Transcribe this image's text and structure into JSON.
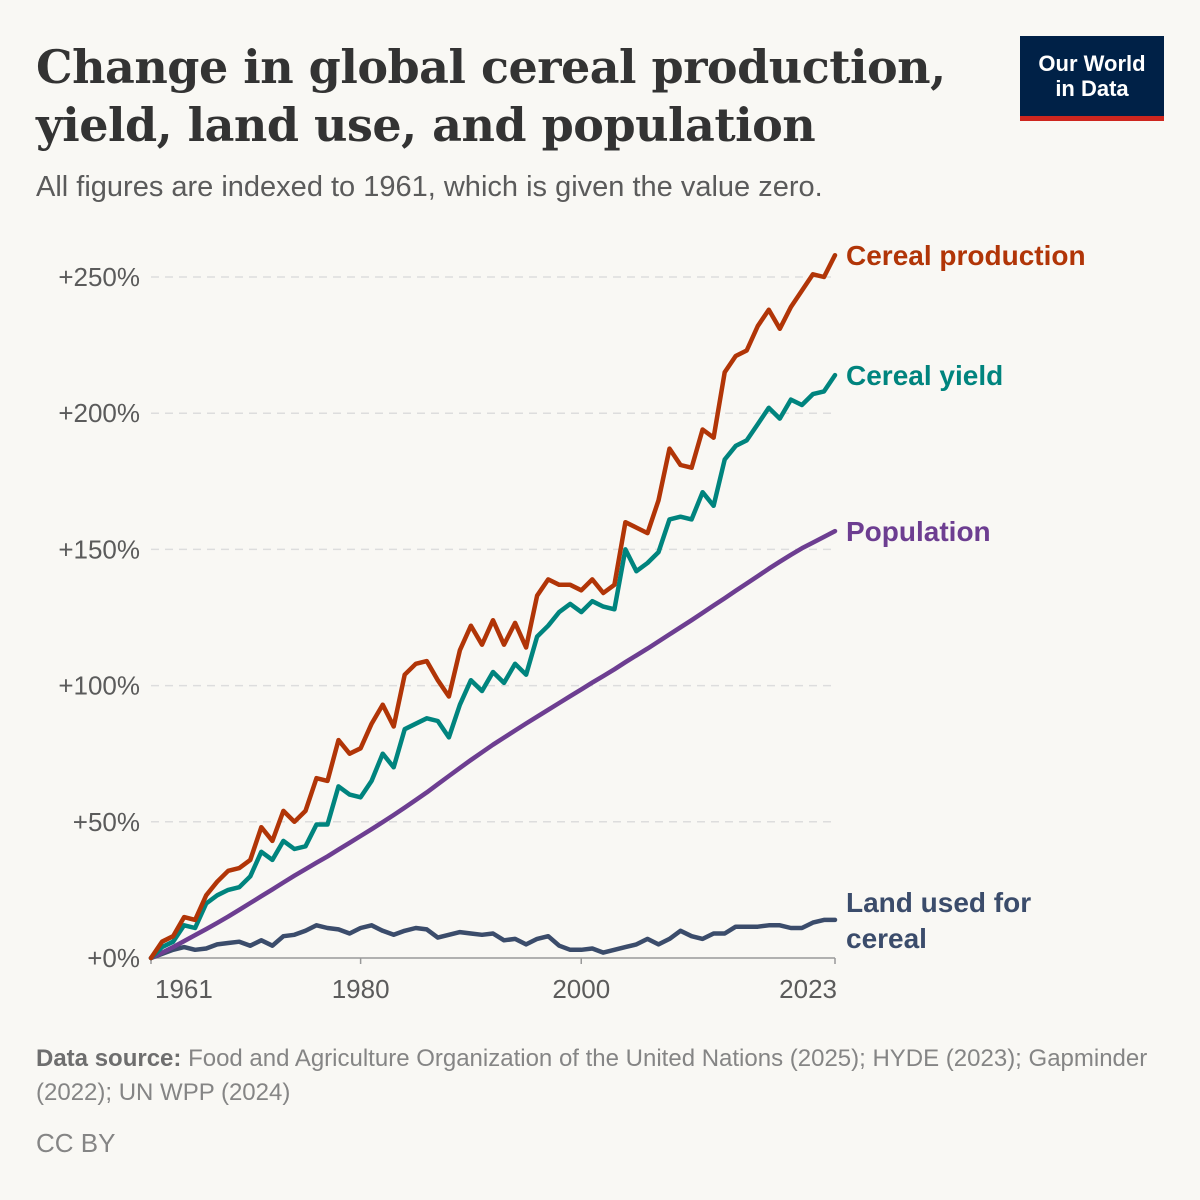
{
  "header": {
    "title": "Change in global cereal production, yield, land use, and population",
    "subtitle": "All figures are indexed to 1961, which is given the value zero.",
    "logo_line1": "Our World",
    "logo_line2": "in Data"
  },
  "footer": {
    "source_label": "Data source:",
    "source_text": "Food and Agriculture Organization of the United Nations (2025); HYDE (2023); Gapminder (2022); UN WPP (2024)",
    "license": "CC BY"
  },
  "colors": {
    "production": "#b13507",
    "yield": "#00847e",
    "population": "#6d3e91",
    "land": "#3b4c6b",
    "grid": "#dddddd",
    "axis": "#999999"
  },
  "chart_data": {
    "type": "line",
    "title": "Change in global cereal production, yield, land use, and population",
    "xlabel": "",
    "ylabel": "",
    "xlim": [
      1961,
      2023
    ],
    "ylim": [
      0,
      250
    ],
    "x_ticks": [
      1961,
      1980,
      2000,
      2023
    ],
    "y_ticks": [
      0,
      50,
      100,
      150,
      200,
      250
    ],
    "y_tick_labels": [
      "+0%",
      "+50%",
      "+100%",
      "+150%",
      "+200%",
      "+250%"
    ],
    "grid": "horizontal dashed",
    "legend": "inline labels at line ends (right)",
    "x": [
      1961,
      1962,
      1963,
      1964,
      1965,
      1966,
      1967,
      1968,
      1969,
      1970,
      1971,
      1972,
      1973,
      1974,
      1975,
      1976,
      1977,
      1978,
      1979,
      1980,
      1981,
      1982,
      1983,
      1984,
      1985,
      1986,
      1987,
      1988,
      1989,
      1990,
      1991,
      1992,
      1993,
      1994,
      1995,
      1996,
      1997,
      1998,
      1999,
      2000,
      2001,
      2002,
      2003,
      2004,
      2005,
      2006,
      2007,
      2008,
      2009,
      2010,
      2011,
      2012,
      2013,
      2014,
      2015,
      2016,
      2017,
      2018,
      2019,
      2020,
      2021,
      2022,
      2023
    ],
    "series": [
      {
        "key": "production",
        "name": "Cereal production",
        "label_lines": [
          "Cereal production"
        ],
        "values": [
          0,
          6,
          8,
          15,
          14,
          23,
          28,
          32,
          33,
          36,
          48,
          43,
          54,
          50,
          54,
          66,
          65,
          80,
          75,
          77,
          86,
          93,
          85,
          104,
          108,
          109,
          102,
          96,
          113,
          122,
          115,
          124,
          115,
          123,
          114,
          133,
          139,
          137,
          137,
          135,
          139,
          134,
          137,
          160,
          158,
          156,
          168,
          187,
          181,
          180,
          194,
          191,
          215,
          221,
          223,
          232,
          238,
          231,
          239,
          245,
          251,
          250,
          258
        ]
      },
      {
        "key": "yield",
        "name": "Cereal yield",
        "label_lines": [
          "Cereal yield"
        ],
        "values": [
          0,
          4,
          6,
          12,
          11,
          20,
          23,
          25,
          26,
          30,
          39,
          36,
          43,
          40,
          41,
          49,
          49,
          63,
          60,
          59,
          65,
          75,
          70,
          84,
          86,
          88,
          87,
          81,
          93,
          102,
          98,
          105,
          101,
          108,
          104,
          118,
          122,
          127,
          130,
          127,
          131,
          129,
          128,
          150,
          142,
          145,
          149,
          161,
          162,
          161,
          171,
          166,
          183,
          188,
          190,
          196,
          202,
          198,
          205,
          203,
          207,
          208,
          214
        ]
      },
      {
        "key": "population",
        "name": "Population",
        "label_lines": [
          "Population"
        ],
        "values": [
          0,
          1.9,
          4.0,
          6.2,
          8.4,
          10.6,
          12.9,
          15.2,
          17.7,
          20.2,
          22.7,
          25.2,
          27.7,
          30.2,
          32.6,
          35.0,
          37.3,
          39.8,
          42.3,
          44.8,
          47.3,
          49.9,
          52.5,
          55.2,
          58.0,
          60.8,
          63.8,
          66.8,
          69.8,
          72.7,
          75.5,
          78.3,
          80.9,
          83.5,
          86.1,
          88.6,
          91.1,
          93.6,
          96.1,
          98.6,
          101.1,
          103.5,
          106.0,
          108.6,
          111.1,
          113.6,
          116.2,
          118.8,
          121.4,
          124.0,
          126.7,
          129.4,
          132.1,
          134.8,
          137.5,
          140.2,
          142.9,
          145.5,
          148.0,
          150.4,
          152.5,
          154.6,
          156.7
        ]
      },
      {
        "key": "land",
        "name": "Land used for cereal",
        "label_lines": [
          "Land used for",
          "cereal"
        ],
        "values": [
          0,
          1.5,
          3,
          4,
          3,
          3.5,
          5,
          5.5,
          6,
          4.5,
          6.5,
          4.5,
          8,
          8.5,
          10,
          12,
          11,
          10.5,
          9,
          11,
          12,
          10,
          8.5,
          10,
          11,
          10.5,
          7.5,
          8.5,
          9.5,
          9,
          8.5,
          9,
          6.5,
          7,
          5,
          7,
          8,
          4.5,
          3,
          3,
          3.5,
          2,
          3,
          4,
          5,
          7,
          5,
          7,
          10,
          8,
          7,
          9,
          9,
          11.5,
          11.5,
          11.5,
          12,
          12,
          11,
          11,
          13,
          14,
          14
        ]
      }
    ]
  }
}
